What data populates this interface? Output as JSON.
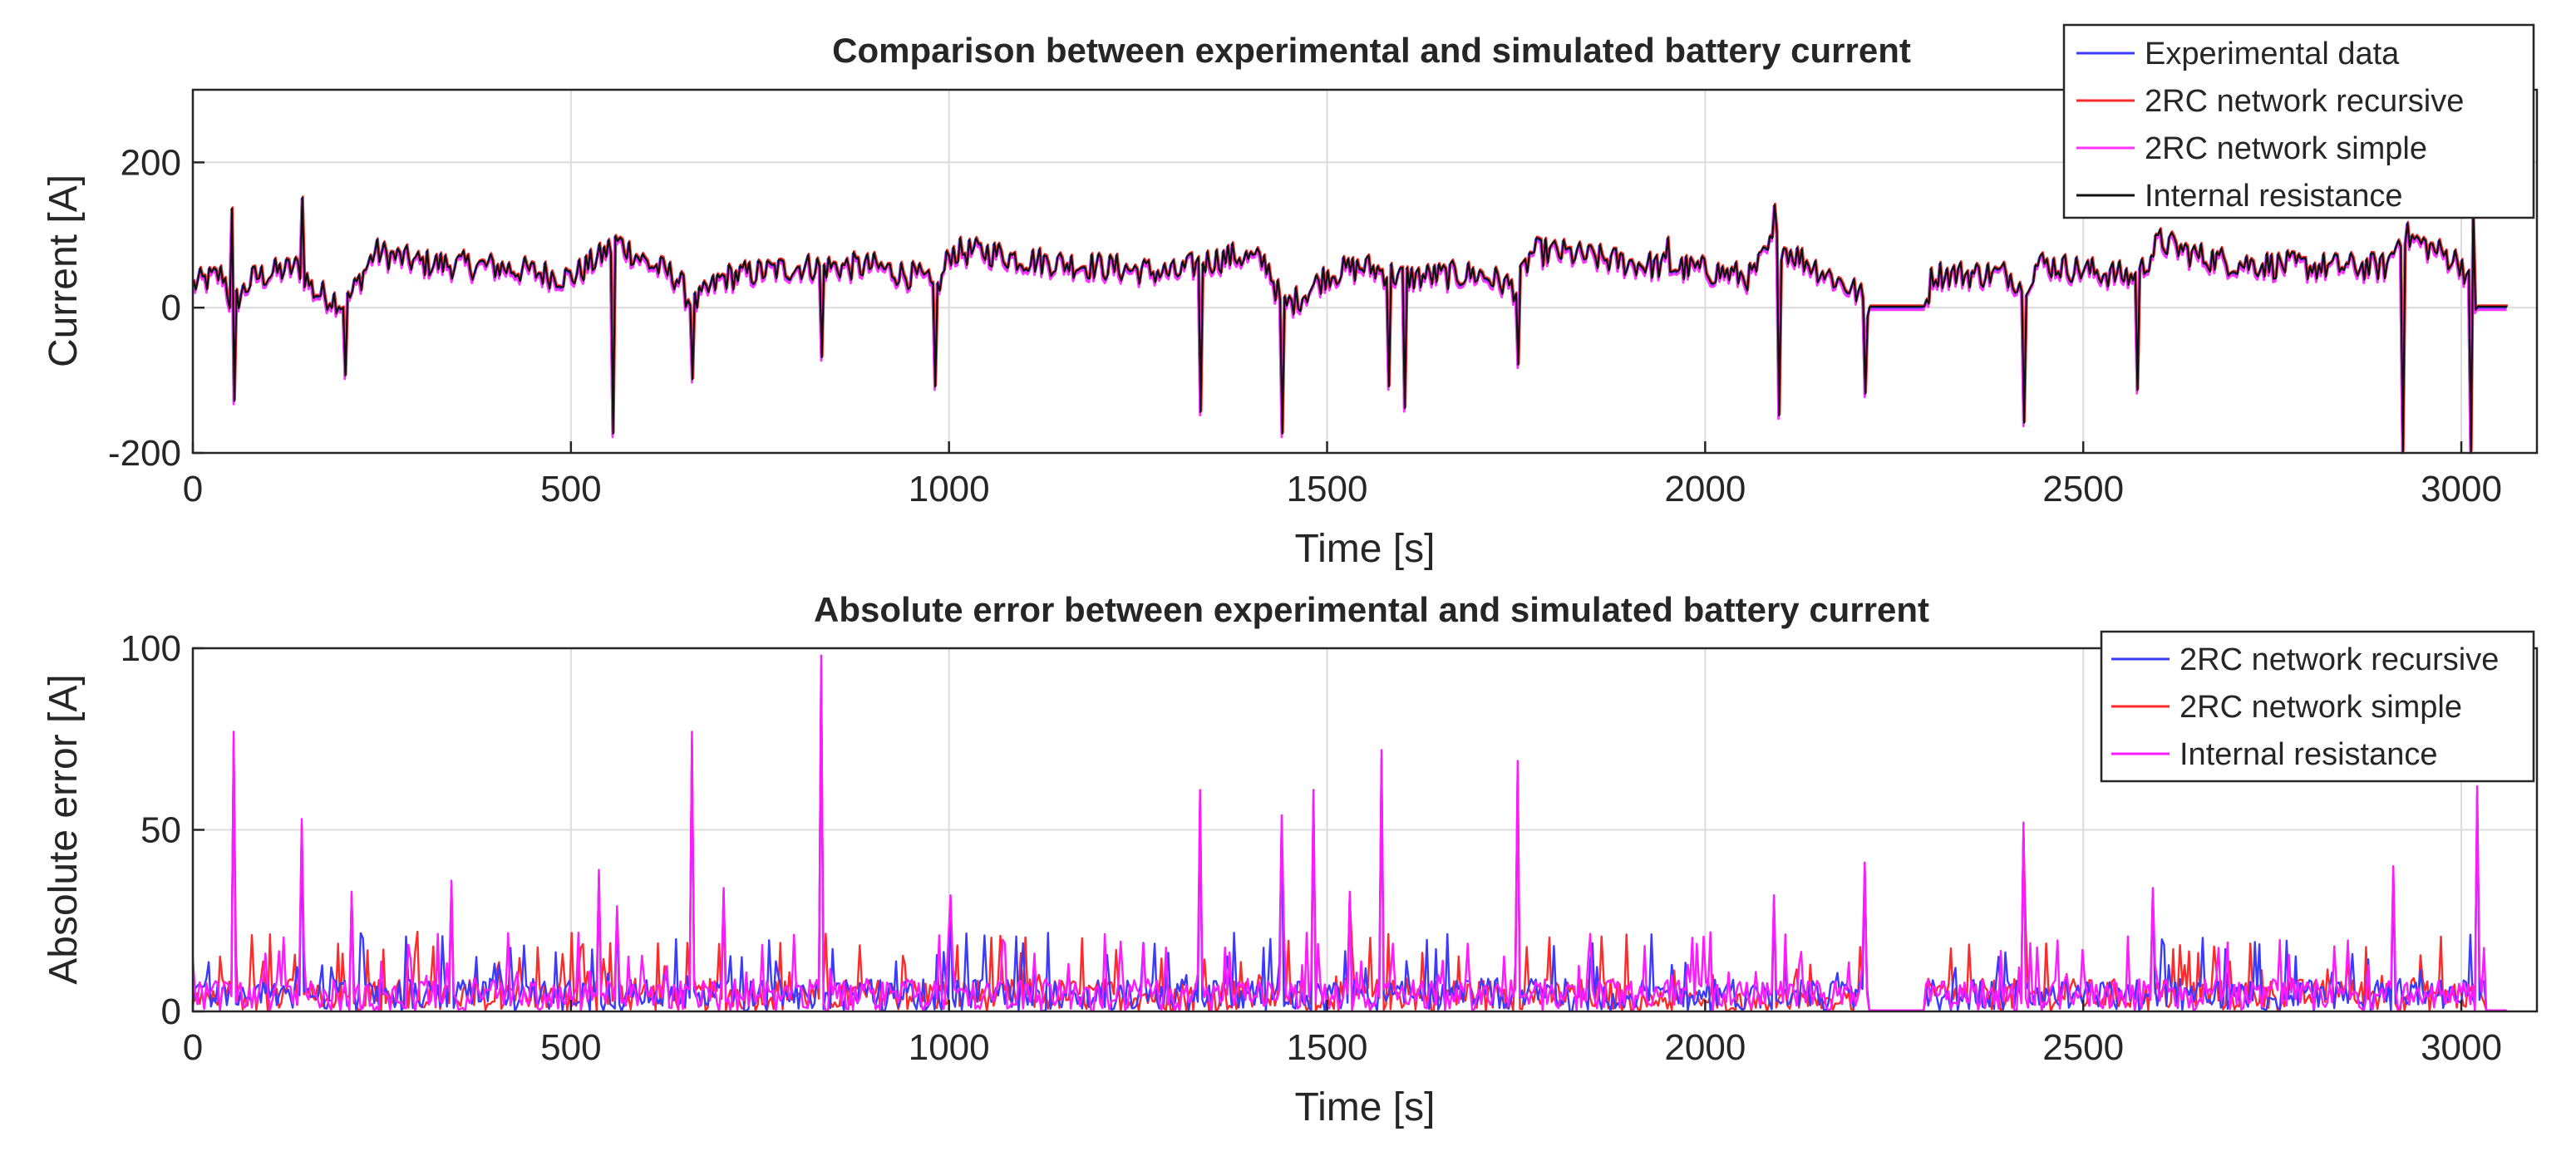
{
  "chart_data": [
    {
      "type": "line",
      "title": "Comparison between experimental and simulated battery current",
      "xlabel": "Time [s]",
      "ylabel": "Current [A]",
      "xlim": [
        0,
        3100
      ],
      "ylim": [
        -200,
        300
      ],
      "xticks": [
        "0",
        "500",
        "1000",
        "1500",
        "2000",
        "2500",
        "3000"
      ],
      "yticks": [
        "-200",
        "0",
        "200"
      ],
      "grid": true,
      "legend_position": "top-right",
      "series": [
        {
          "name": "Experimental data",
          "color": "#3b3bff"
        },
        {
          "name": "2RC network recursive",
          "color": "#ff2a2a"
        },
        {
          "name": "2RC network simple",
          "color": "#ff33ff"
        },
        {
          "name": "Internal resistance",
          "color": "#111111"
        }
      ],
      "baseline": [
        [
          0,
          30
        ],
        [
          40,
          45
        ],
        [
          50,
          0
        ],
        [
          80,
          40
        ],
        [
          140,
          55
        ],
        [
          160,
          20
        ],
        [
          190,
          10
        ],
        [
          200,
          0
        ],
        [
          240,
          75
        ],
        [
          300,
          60
        ],
        [
          400,
          55
        ],
        [
          500,
          40
        ],
        [
          540,
          70
        ],
        [
          560,
          90
        ],
        [
          600,
          60
        ],
        [
          640,
          40
        ],
        [
          660,
          0
        ],
        [
          700,
          40
        ],
        [
          800,
          55
        ],
        [
          900,
          55
        ],
        [
          960,
          40
        ],
        [
          985,
          20
        ],
        [
          1000,
          75
        ],
        [
          1050,
          75
        ],
        [
          1100,
          65
        ],
        [
          1200,
          55
        ],
        [
          1300,
          45
        ],
        [
          1330,
          60
        ],
        [
          1380,
          70
        ],
        [
          1420,
          60
        ],
        [
          1440,
          0
        ],
        [
          1460,
          10
        ],
        [
          1500,
          45
        ],
        [
          1550,
          55
        ],
        [
          1600,
          40
        ],
        [
          1700,
          45
        ],
        [
          1750,
          25
        ],
        [
          1770,
          75
        ],
        [
          1800,
          75
        ],
        [
          1900,
          60
        ],
        [
          2000,
          50
        ],
        [
          2060,
          40
        ],
        [
          2090,
          90
        ],
        [
          2120,
          70
        ],
        [
          2200,
          20
        ],
        [
          2215,
          0
        ],
        [
          2290,
          0
        ],
        [
          2300,
          45
        ],
        [
          2400,
          45
        ],
        [
          2420,
          30
        ],
        [
          2440,
          60
        ],
        [
          2500,
          50
        ],
        [
          2570,
          40
        ],
        [
          2600,
          90
        ],
        [
          2650,
          70
        ],
        [
          2700,
          60
        ],
        [
          2800,
          55
        ],
        [
          2900,
          55
        ],
        [
          2920,
          100
        ],
        [
          2960,
          80
        ],
        [
          3000,
          60
        ],
        [
          3020,
          0
        ],
        [
          3060,
          0
        ]
      ],
      "spikes": [
        [
          50,
          135
        ],
        [
          52,
          -130
        ],
        [
          143,
          150
        ],
        [
          200,
          -95
        ],
        [
          553,
          -175
        ],
        [
          660,
          -100
        ],
        [
          830,
          -70
        ],
        [
          980,
          -110
        ],
        [
          1330,
          -145
        ],
        [
          1440,
          -175
        ],
        [
          1580,
          -110
        ],
        [
          1600,
          -140
        ],
        [
          1750,
          -80
        ],
        [
          1950,
          95
        ],
        [
          2090,
          140
        ],
        [
          2095,
          -150
        ],
        [
          2210,
          -120
        ],
        [
          2420,
          -160
        ],
        [
          2570,
          -115
        ],
        [
          2920,
          -200
        ],
        [
          3010,
          -200
        ],
        [
          3015,
          130
        ]
      ]
    },
    {
      "type": "line",
      "title": "Absolute error between experimental and simulated battery current",
      "xlabel": "Time [s]",
      "ylabel": "Absolute error [A]",
      "xlim": [
        0,
        3100
      ],
      "ylim": [
        0,
        100
      ],
      "xticks": [
        "0",
        "500",
        "1000",
        "1500",
        "2000",
        "2500",
        "3000"
      ],
      "yticks": [
        "0",
        "50",
        "100"
      ],
      "grid": true,
      "legend_position": "top-right",
      "series": [
        {
          "name": "2RC network recursive",
          "color": "#3b3bff"
        },
        {
          "name": "2RC network simple",
          "color": "#ff2a2a"
        },
        {
          "name": "Internal resistance",
          "color": "#ff1aff"
        }
      ],
      "spikes": [
        [
          52,
          77
        ],
        [
          143,
          53
        ],
        [
          210,
          33
        ],
        [
          340,
          36
        ],
        [
          535,
          39
        ],
        [
          560,
          29
        ],
        [
          660,
          77
        ],
        [
          700,
          34
        ],
        [
          830,
          98
        ],
        [
          1000,
          32
        ],
        [
          1330,
          61
        ],
        [
          1440,
          54
        ],
        [
          1480,
          61
        ],
        [
          1530,
          33
        ],
        [
          1570,
          72
        ],
        [
          1750,
          69
        ],
        [
          2090,
          32
        ],
        [
          2210,
          41
        ],
        [
          2420,
          52
        ],
        [
          2590,
          34
        ],
        [
          2910,
          40
        ],
        [
          3020,
          62
        ]
      ],
      "gaps": [
        [
          2215,
          2290
        ],
        [
          3030,
          3100
        ]
      ]
    }
  ]
}
